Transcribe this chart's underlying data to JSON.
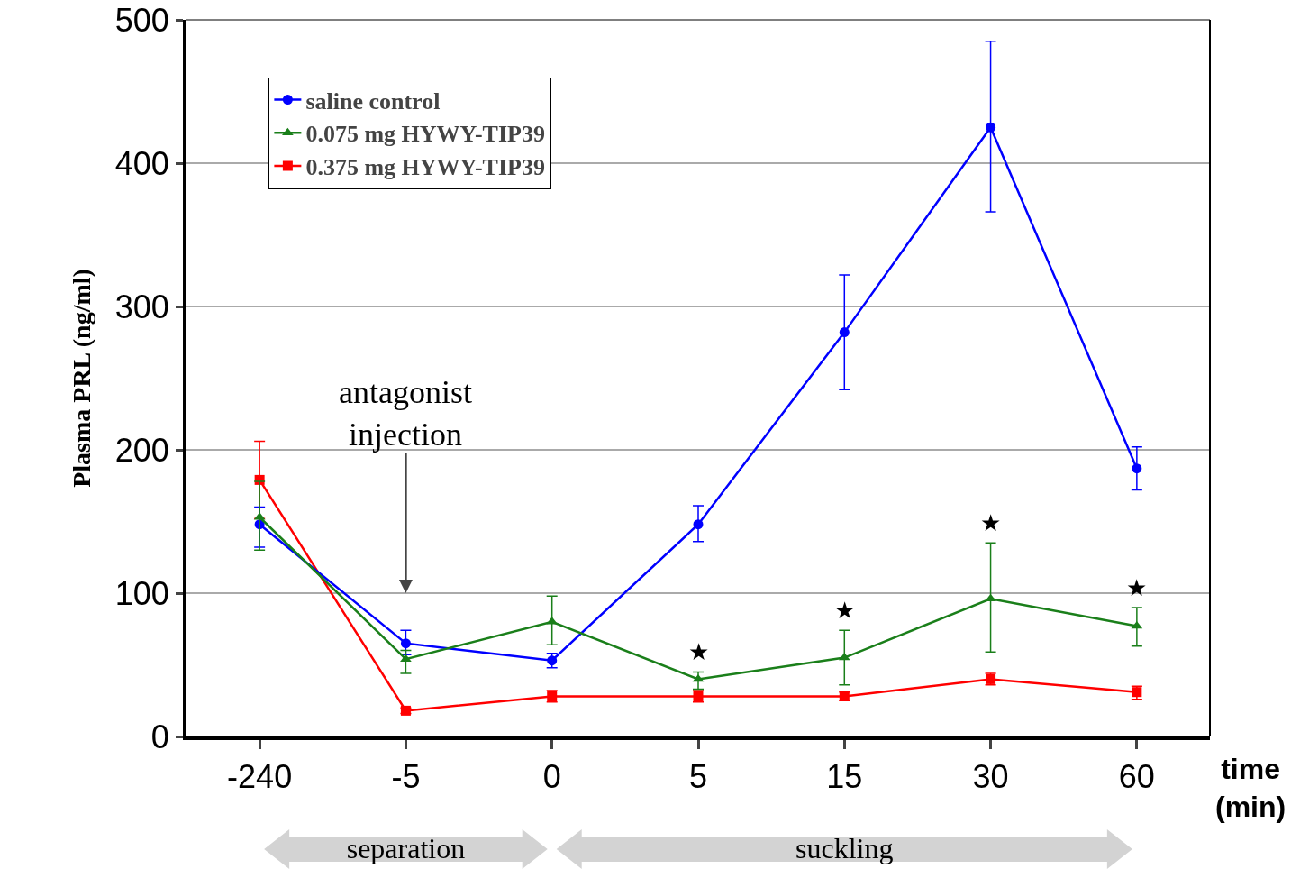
{
  "chart_data": {
    "type": "line",
    "ylabel": "Plasma PRL (ng/ml)",
    "xlabel": "time (min)",
    "categories": [
      "-240",
      "-5",
      "0",
      "5",
      "15",
      "30",
      "60"
    ],
    "ylim": [
      0,
      500
    ],
    "yticks": [
      0,
      100,
      200,
      300,
      400,
      500
    ],
    "grid": "y",
    "legend": "top left",
    "line_style": "solid",
    "series": [
      {
        "name": "saline control",
        "color": "#0000ff",
        "marker": "circle",
        "values": [
          148,
          65,
          53,
          148,
          282,
          425,
          187
        ],
        "errors": [
          [
            132,
            160
          ],
          [
            57,
            74
          ],
          [
            48,
            58
          ],
          [
            136,
            161
          ],
          [
            242,
            322
          ],
          [
            366,
            485
          ],
          [
            172,
            202
          ]
        ]
      },
      {
        "name": "0.075 mg HYWY-TIP39",
        "color": "#1a7f1a",
        "marker": "triangle",
        "values": [
          153,
          54,
          80,
          40,
          55,
          96,
          77
        ],
        "errors": [
          [
            130,
            178
          ],
          [
            44,
            60
          ],
          [
            64,
            98
          ],
          [
            33,
            45
          ],
          [
            36,
            74
          ],
          [
            59,
            135
          ],
          [
            63,
            90
          ]
        ]
      },
      {
        "name": "0.375 mg HYWY-TIP39",
        "color": "#ff0000",
        "marker": "square",
        "values": [
          179,
          18,
          28,
          28,
          28,
          40,
          31
        ],
        "errors": [
          [
            152,
            206
          ],
          [
            16,
            20
          ],
          [
            24,
            32
          ],
          [
            24,
            32
          ],
          [
            25,
            31
          ],
          [
            36,
            44
          ],
          [
            26,
            35
          ]
        ]
      }
    ],
    "annotations": [
      "antagonist injection",
      "★",
      "★",
      "★",
      "★",
      "separation",
      "suckling"
    ]
  }
}
